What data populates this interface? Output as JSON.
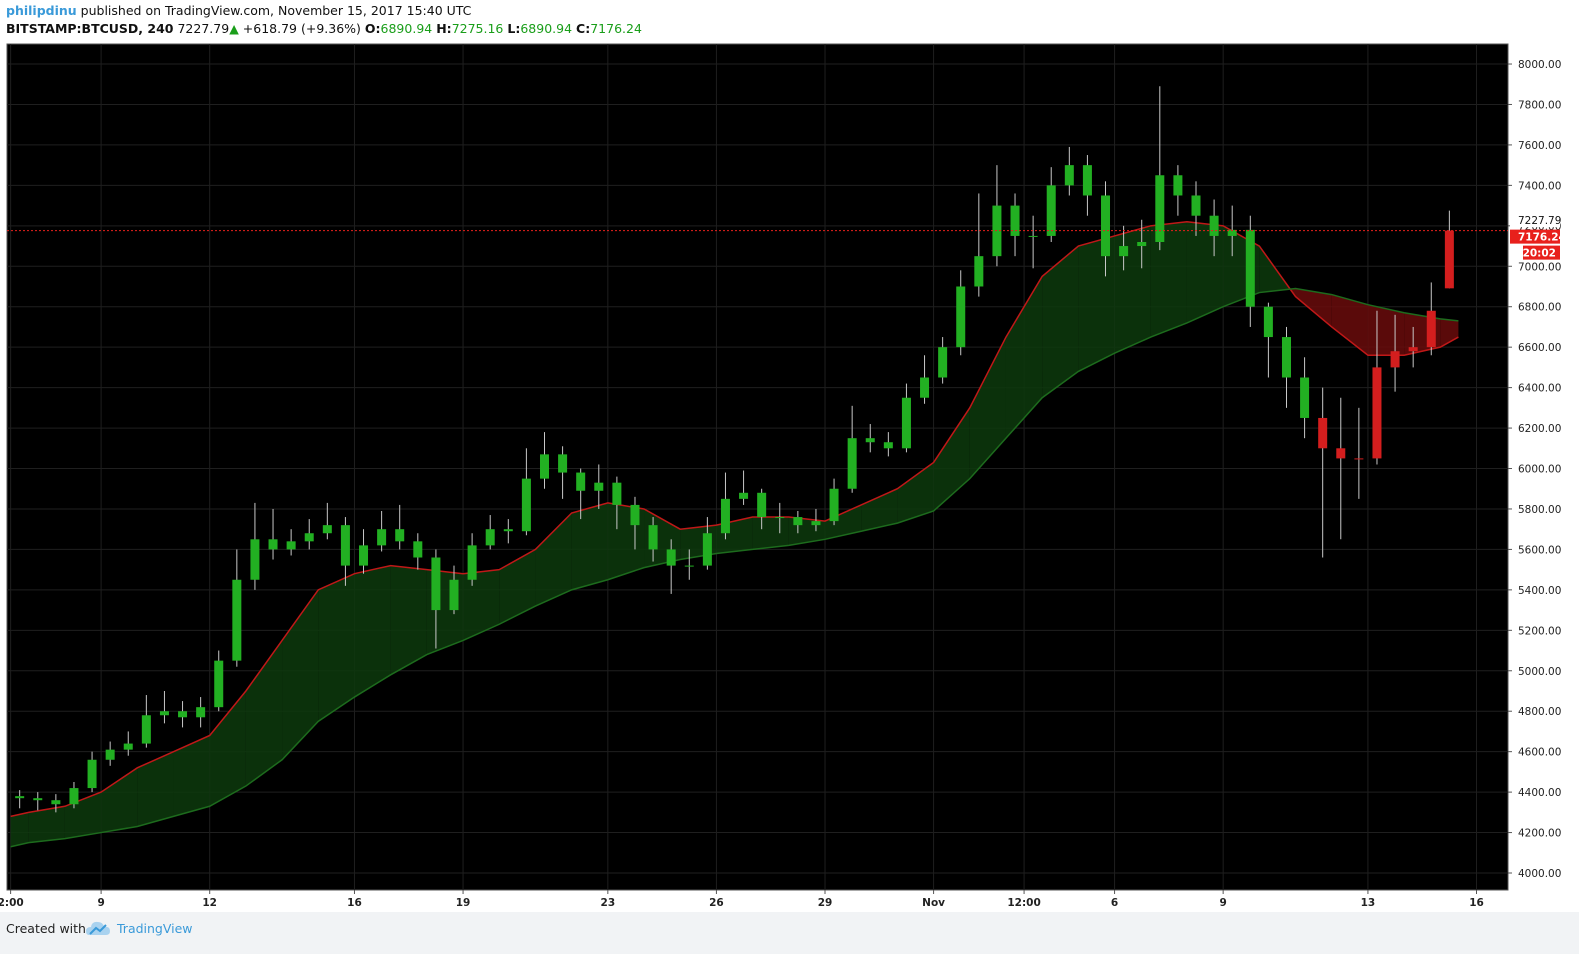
{
  "header": {
    "user": "philipdinu",
    "published": "published on TradingView.com, November 15, 2017 15:40 UTC",
    "symbol": "BITSTAMP:BTCUSD, 240",
    "price": "7227.79",
    "arrow": "▲",
    "change": "+618.79 (+9.36%)",
    "o_label": "O:",
    "o": "6890.94",
    "h_label": "H:",
    "h": "7275.16",
    "l_label": "L:",
    "l": "6890.94",
    "c_label": "C:",
    "c": "7176.24"
  },
  "footer": {
    "created": "Created with",
    "brand": "TradingView"
  },
  "chart_data": {
    "type": "candlestick",
    "background": "#000000",
    "grid": true,
    "grid_color": "#1f1f1f",
    "xlim": [
      6.4,
      47.87
    ],
    "ylim": [
      3916,
      8099
    ],
    "xticks": [
      {
        "value": 6.5,
        "label": "2:00"
      },
      9,
      12,
      16,
      19,
      23,
      26,
      29,
      {
        "value": 32,
        "label": "Nov"
      },
      {
        "value": 34.5,
        "label": "12:00"
      },
      {
        "value": 37,
        "label": "6"
      },
      {
        "value": 40,
        "label": "9"
      },
      {
        "value": 44,
        "label": "13"
      },
      {
        "value": 47,
        "label": "16"
      }
    ],
    "yticks": [
      {
        "value": 4000,
        "label": "4000.00"
      },
      {
        "value": 4200,
        "label": "4200.00"
      },
      {
        "value": 4400,
        "label": "4400.00"
      },
      {
        "value": 4600,
        "label": "4600.00"
      },
      {
        "value": 4800,
        "label": "4800.00"
      },
      {
        "value": 5000,
        "label": "5000.00"
      },
      {
        "value": 5200,
        "label": "5200.00"
      },
      {
        "value": 5400,
        "label": "5400.00"
      },
      {
        "value": 5600,
        "label": "5600.00"
      },
      {
        "value": 5800,
        "label": "5800.00"
      },
      {
        "value": 6000,
        "label": "6000.00"
      },
      {
        "value": 6200,
        "label": "6200.00"
      },
      {
        "value": 6400,
        "label": "6400.00"
      },
      {
        "value": 6600,
        "label": "6600.00"
      },
      {
        "value": 6800,
        "label": "6800.00"
      },
      {
        "value": 7000,
        "label": "7000.00"
      },
      {
        "value": 7200,
        "label": "7200.00"
      },
      {
        "value": 7400,
        "label": "7400.00"
      },
      {
        "value": 7600,
        "label": "7600.00"
      },
      {
        "value": 7800,
        "label": "7800.00"
      },
      {
        "value": 8000,
        "label": "8000.00"
      }
    ],
    "wick_color": "#c8c8c8",
    "series": [
      {
        "color": "#22b022",
        "x": [
          6.75,
          7.25,
          7.75,
          8.25,
          8.75,
          9.25,
          9.75,
          10.25,
          10.75,
          11.25,
          11.75,
          12.25,
          12.75,
          13.25,
          13.75,
          14.25,
          14.75,
          15.25,
          15.75,
          16.25,
          16.75,
          17.25,
          17.75,
          18.25,
          18.75,
          19.25,
          19.75,
          20.25,
          20.75,
          21.25,
          21.75,
          22.25,
          22.75,
          23.25,
          23.75,
          24.25,
          24.75,
          25.25,
          25.75,
          26.25,
          26.75,
          27.25,
          27.75,
          28.25,
          28.75,
          29.25,
          29.75,
          30.25,
          30.75,
          31.25,
          31.75,
          32.25,
          32.75,
          33.25,
          33.75,
          34.25,
          34.75,
          35.25,
          35.75,
          36.25,
          36.75,
          37.25,
          37.75,
          38.25,
          38.75,
          39.25,
          39.75,
          40.25,
          40.75,
          41.25,
          41.75,
          42.25
        ],
        "open": [
          4380,
          4370,
          4360,
          4340,
          4420,
          4560,
          4610,
          4640,
          4780,
          4800,
          4770,
          4820,
          5050,
          5450,
          5650,
          5600,
          5640,
          5680,
          5720,
          5520,
          5620,
          5700,
          5640,
          5560,
          5300,
          5450,
          5620,
          5700,
          5690,
          5950,
          6070,
          5980,
          5890,
          5930,
          5820,
          5720,
          5600,
          5520,
          5520,
          5680,
          5850,
          5880,
          5760,
          5760,
          5720,
          5740,
          5900,
          6150,
          6130,
          6100,
          6350,
          6450,
          6600,
          6900,
          7050,
          7300,
          7150,
          7150,
          7400,
          7500,
          7350,
          7050,
          7100,
          7120,
          7450,
          7350,
          7250,
          7150,
          7180,
          6800,
          6650,
          6450
        ],
        "high": [
          4410,
          4400,
          4390,
          4450,
          4600,
          4650,
          4700,
          4880,
          4900,
          4850,
          4870,
          5100,
          5600,
          5830,
          5800,
          5700,
          5750,
          5830,
          5760,
          5700,
          5790,
          5820,
          5680,
          5600,
          5520,
          5680,
          5770,
          5750,
          6100,
          6180,
          6110,
          6000,
          6020,
          5960,
          5860,
          5760,
          5650,
          5600,
          5760,
          5980,
          5990,
          5900,
          5830,
          5790,
          5800,
          5950,
          6310,
          6220,
          6180,
          6420,
          6560,
          6650,
          6980,
          7360,
          7500,
          7360,
          7250,
          7490,
          7590,
          7550,
          7420,
          7200,
          7230,
          7890,
          7500,
          7420,
          7330,
          7300,
          7250,
          6820,
          6700,
          6550
        ],
        "low": [
          4320,
          4310,
          4300,
          4320,
          4400,
          4530,
          4580,
          4620,
          4740,
          4720,
          4720,
          4800,
          5020,
          5400,
          5550,
          5570,
          5600,
          5650,
          5420,
          5480,
          5590,
          5600,
          5500,
          5110,
          5280,
          5420,
          5600,
          5630,
          5670,
          5900,
          5850,
          5750,
          5800,
          5700,
          5600,
          5540,
          5380,
          5450,
          5500,
          5650,
          5820,
          5700,
          5680,
          5680,
          5690,
          5720,
          5880,
          6080,
          6060,
          6080,
          6320,
          6420,
          6560,
          6850,
          7000,
          7050,
          6990,
          7120,
          7350,
          7250,
          6950,
          6980,
          6990,
          7080,
          7250,
          7150,
          7050,
          7050,
          6700,
          6450,
          6300,
          6150
        ],
        "close": [
          4370,
          4360,
          4340,
          4420,
          4560,
          4610,
          4640,
          4780,
          4800,
          4770,
          4820,
          5050,
          5450,
          5650,
          5600,
          5640,
          5680,
          5720,
          5520,
          5620,
          5700,
          5640,
          5560,
          5300,
          5450,
          5620,
          5700,
          5690,
          5950,
          6070,
          5980,
          5890,
          5930,
          5820,
          5720,
          5600,
          5520,
          5520,
          5680,
          5850,
          5880,
          5760,
          5760,
          5720,
          5740,
          5900,
          6150,
          6130,
          6100,
          6350,
          6450,
          6600,
          6900,
          7050,
          7300,
          7150,
          7150,
          7400,
          7500,
          7350,
          7050,
          7100,
          7120,
          7450,
          7350,
          7250,
          7150,
          7180,
          6800,
          6650,
          6450,
          6250
        ]
      },
      {
        "color": "#d41e1e",
        "x": [
          42.75,
          43.25,
          43.75,
          44.25,
          44.75,
          45.25,
          45.75,
          46.25
        ],
        "open": [
          6250,
          6100,
          6050,
          6050,
          6500,
          6580,
          6600,
          6890.94
        ],
        "high": [
          6400,
          6350,
          6300,
          6780,
          6760,
          6700,
          6920,
          7275.16
        ],
        "low": [
          5560,
          5650,
          5850,
          6020,
          6380,
          6500,
          6560,
          6890.94
        ],
        "close": [
          6100,
          6050,
          6050,
          6500,
          6580,
          6600,
          6780,
          7176.24
        ]
      }
    ],
    "lines": [
      {
        "color": "#c01818",
        "x": [
          6.5,
          7,
          8,
          9,
          10,
          11,
          12,
          13,
          14,
          15,
          16,
          17,
          18,
          19,
          20,
          21,
          22,
          23,
          24,
          25,
          26,
          27,
          28,
          29,
          30,
          31,
          32,
          33,
          34,
          35,
          36,
          37,
          38,
          39,
          40,
          41,
          42,
          43,
          44,
          45,
          46,
          46.5
        ],
        "values": [
          4280,
          4300,
          4330,
          4400,
          4520,
          4600,
          4680,
          4900,
          5150,
          5400,
          5480,
          5520,
          5500,
          5480,
          5500,
          5600,
          5780,
          5830,
          5800,
          5700,
          5720,
          5760,
          5760,
          5740,
          5820,
          5900,
          6030,
          6300,
          6650,
          6950,
          7100,
          7150,
          7200,
          7220,
          7200,
          7100,
          6850,
          6700,
          6560,
          6560,
          6600,
          6650
        ]
      },
      {
        "color": "#1d6b1d",
        "x": [
          6.5,
          7,
          8,
          9,
          10,
          11,
          12,
          13,
          14,
          15,
          16,
          17,
          18,
          19,
          20,
          21,
          22,
          23,
          24,
          25,
          26,
          27,
          28,
          29,
          30,
          31,
          32,
          33,
          34,
          35,
          36,
          37,
          38,
          39,
          40,
          41,
          42,
          43,
          44,
          45,
          46,
          46.5
        ],
        "values": [
          4130,
          4150,
          4170,
          4200,
          4230,
          4280,
          4330,
          4430,
          4560,
          4750,
          4870,
          4980,
          5080,
          5150,
          5230,
          5320,
          5400,
          5450,
          5510,
          5550,
          5580,
          5600,
          5620,
          5650,
          5690,
          5730,
          5790,
          5950,
          6150,
          6350,
          6480,
          6570,
          6650,
          6720,
          6800,
          6870,
          6890,
          6860,
          6810,
          6770,
          6740,
          6730
        ]
      }
    ],
    "cloud_up_color": "#0d3a0d",
    "cloud_down_color": "#6a0c0c",
    "last_price": {
      "value": 7227.79,
      "label": "7227.79"
    },
    "close_price": {
      "value": 7176.24,
      "label": "7176.24",
      "color": "#e8201c"
    },
    "countdown": "20:02"
  }
}
